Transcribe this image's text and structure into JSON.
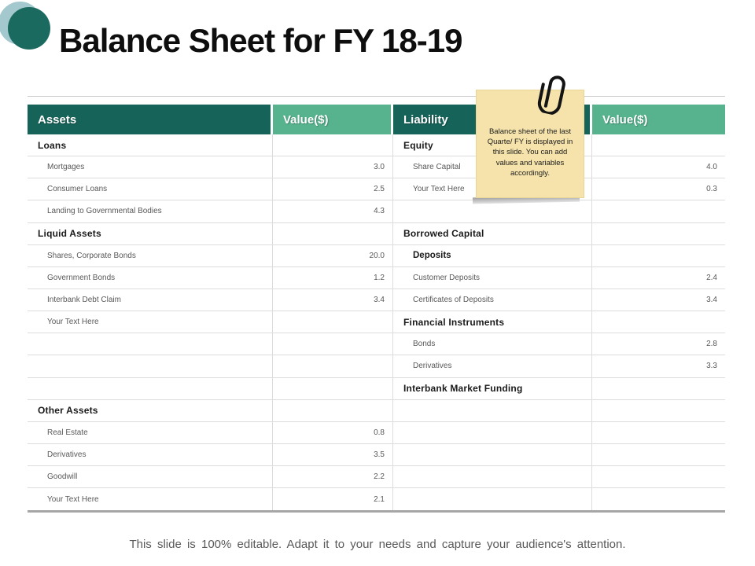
{
  "slide": {
    "title": "Balance Sheet for FY 18-19",
    "footer": "This slide is 100% editable. Adapt it to your needs and capture your audience's attention."
  },
  "note": {
    "text": "Balance sheet of the last Quarte/ FY is displayed in this slide. You can add values and variables accordingly.",
    "bg_color": "#F5E3AB",
    "icon": "paperclip-icon"
  },
  "colors": {
    "header_dark_teal": "#16635A",
    "header_green": "#57B28E",
    "grid_line": "#DCDCDC",
    "bottom_border": "#A6A6A6",
    "category_text": "#1A1A1A",
    "item_text": "#595959",
    "accent_circle_dark": "#1B6A60",
    "accent_circle_light": "#A3C8CD"
  },
  "table": {
    "headers": [
      "Assets",
      "Value($)",
      "Liability",
      "Value($)"
    ],
    "rows": [
      {
        "asset_label": "Loans",
        "asset_style": "category",
        "asset_value": "",
        "liability_label": "Equity",
        "liability_style": "category",
        "liability_value": ""
      },
      {
        "asset_label": "Mortgages",
        "asset_style": "item",
        "asset_value": "3.0",
        "liability_label": "Share Capital",
        "liability_style": "item",
        "liability_value": "4.0"
      },
      {
        "asset_label": "Consumer Loans",
        "asset_style": "item",
        "asset_value": "2.5",
        "liability_label": "Your Text Here",
        "liability_style": "item",
        "liability_value": "0.3"
      },
      {
        "asset_label": "Landing to Governmental Bodies",
        "asset_style": "item",
        "asset_value": "4.3",
        "liability_label": "",
        "liability_style": "blank",
        "liability_value": ""
      },
      {
        "asset_label": "Liquid Assets",
        "asset_style": "category",
        "asset_value": "",
        "liability_label": "Borrowed Capital",
        "liability_style": "category",
        "liability_value": ""
      },
      {
        "asset_label": "Shares, Corporate Bonds",
        "asset_style": "item",
        "asset_value": "20.0",
        "liability_label": "Deposits",
        "liability_style": "subcategory",
        "liability_value": ""
      },
      {
        "asset_label": "Government Bonds",
        "asset_style": "item",
        "asset_value": "1.2",
        "liability_label": "Customer Deposits",
        "liability_style": "item",
        "liability_value": "2.4"
      },
      {
        "asset_label": "Interbank Debt Claim",
        "asset_style": "item",
        "asset_value": "3.4",
        "liability_label": "Certificates of Deposits",
        "liability_style": "item",
        "liability_value": "3.4"
      },
      {
        "asset_label": "Your Text Here",
        "asset_style": "item",
        "asset_value": "",
        "liability_label": "Financial Instruments",
        "liability_style": "category",
        "liability_value": ""
      },
      {
        "asset_label": "",
        "asset_style": "blank",
        "asset_value": "",
        "liability_label": "Bonds",
        "liability_style": "item",
        "liability_value": "2.8"
      },
      {
        "asset_label": "",
        "asset_style": "blank",
        "asset_value": "",
        "liability_label": "Derivatives",
        "liability_style": "item",
        "liability_value": "3.3"
      },
      {
        "asset_label": "",
        "asset_style": "blank",
        "asset_value": "",
        "liability_label": "Interbank Market Funding",
        "liability_style": "category",
        "liability_value": ""
      },
      {
        "asset_label": "Other Assets",
        "asset_style": "category",
        "asset_value": "",
        "liability_label": "",
        "liability_style": "blank",
        "liability_value": ""
      },
      {
        "asset_label": "Real Estate",
        "asset_style": "item",
        "asset_value": "0.8",
        "liability_label": "",
        "liability_style": "blank",
        "liability_value": ""
      },
      {
        "asset_label": "Derivatives",
        "asset_style": "item",
        "asset_value": "3.5",
        "liability_label": "",
        "liability_style": "blank",
        "liability_value": ""
      },
      {
        "asset_label": "Goodwill",
        "asset_style": "item",
        "asset_value": "2.2",
        "liability_label": "",
        "liability_style": "blank",
        "liability_value": ""
      },
      {
        "asset_label": "Your Text Here",
        "asset_style": "item",
        "asset_value": "2.1",
        "liability_label": "",
        "liability_style": "blank",
        "liability_value": ""
      }
    ]
  }
}
